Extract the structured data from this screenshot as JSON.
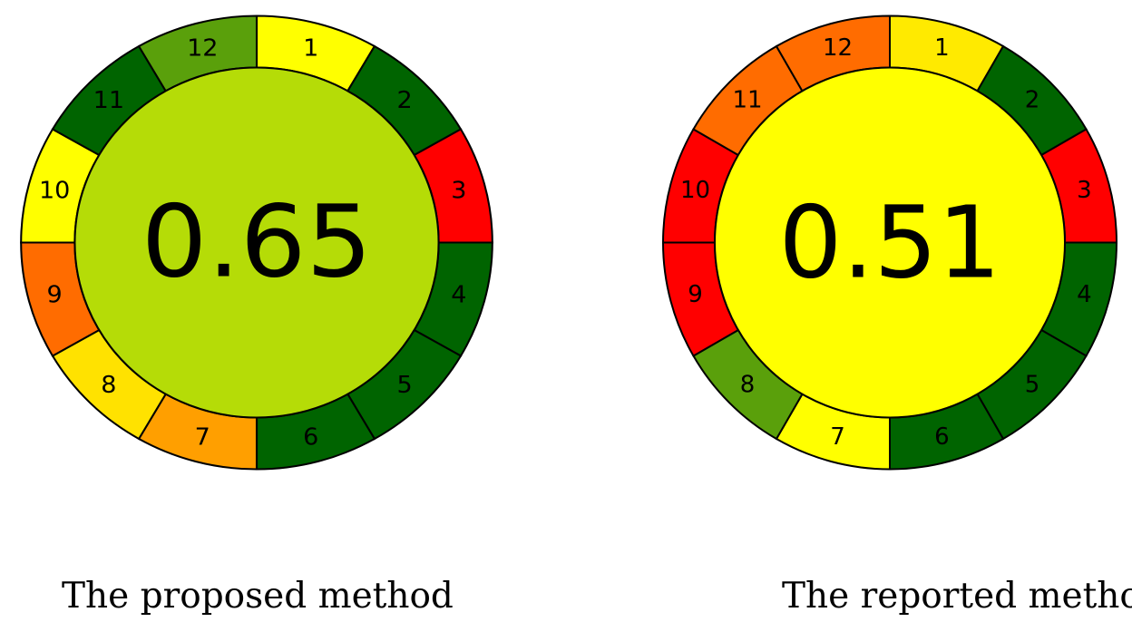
{
  "panels": [
    {
      "score": "0.65",
      "caption": "The proposed method",
      "center_color": "#b5dc07",
      "segments": [
        {
          "label": "1",
          "color": "#ffff00"
        },
        {
          "label": "2",
          "color": "#006400"
        },
        {
          "label": "3",
          "color": "#ff0000"
        },
        {
          "label": "4",
          "color": "#006400"
        },
        {
          "label": "5",
          "color": "#006400"
        },
        {
          "label": "6",
          "color": "#006400"
        },
        {
          "label": "7",
          "color": "#ff9f00"
        },
        {
          "label": "8",
          "color": "#ffe200"
        },
        {
          "label": "9",
          "color": "#ff6c00"
        },
        {
          "label": "10",
          "color": "#ffff00"
        },
        {
          "label": "11",
          "color": "#006400"
        },
        {
          "label": "12",
          "color": "#5aa00b"
        }
      ]
    },
    {
      "score": "0.51",
      "caption": "The reported method",
      "center_color": "#ffff00",
      "segments": [
        {
          "label": "1",
          "color": "#ffea00"
        },
        {
          "label": "2",
          "color": "#006400"
        },
        {
          "label": "3",
          "color": "#ff0000"
        },
        {
          "label": "4",
          "color": "#006400"
        },
        {
          "label": "5",
          "color": "#006400"
        },
        {
          "label": "6",
          "color": "#006400"
        },
        {
          "label": "7",
          "color": "#ffff00"
        },
        {
          "label": "8",
          "color": "#5aa00b"
        },
        {
          "label": "9",
          "color": "#ff0000"
        },
        {
          "label": "10",
          "color": "#ff0000"
        },
        {
          "label": "11",
          "color": "#ff6c00"
        },
        {
          "label": "12",
          "color": "#ff6c00"
        }
      ]
    }
  ]
}
